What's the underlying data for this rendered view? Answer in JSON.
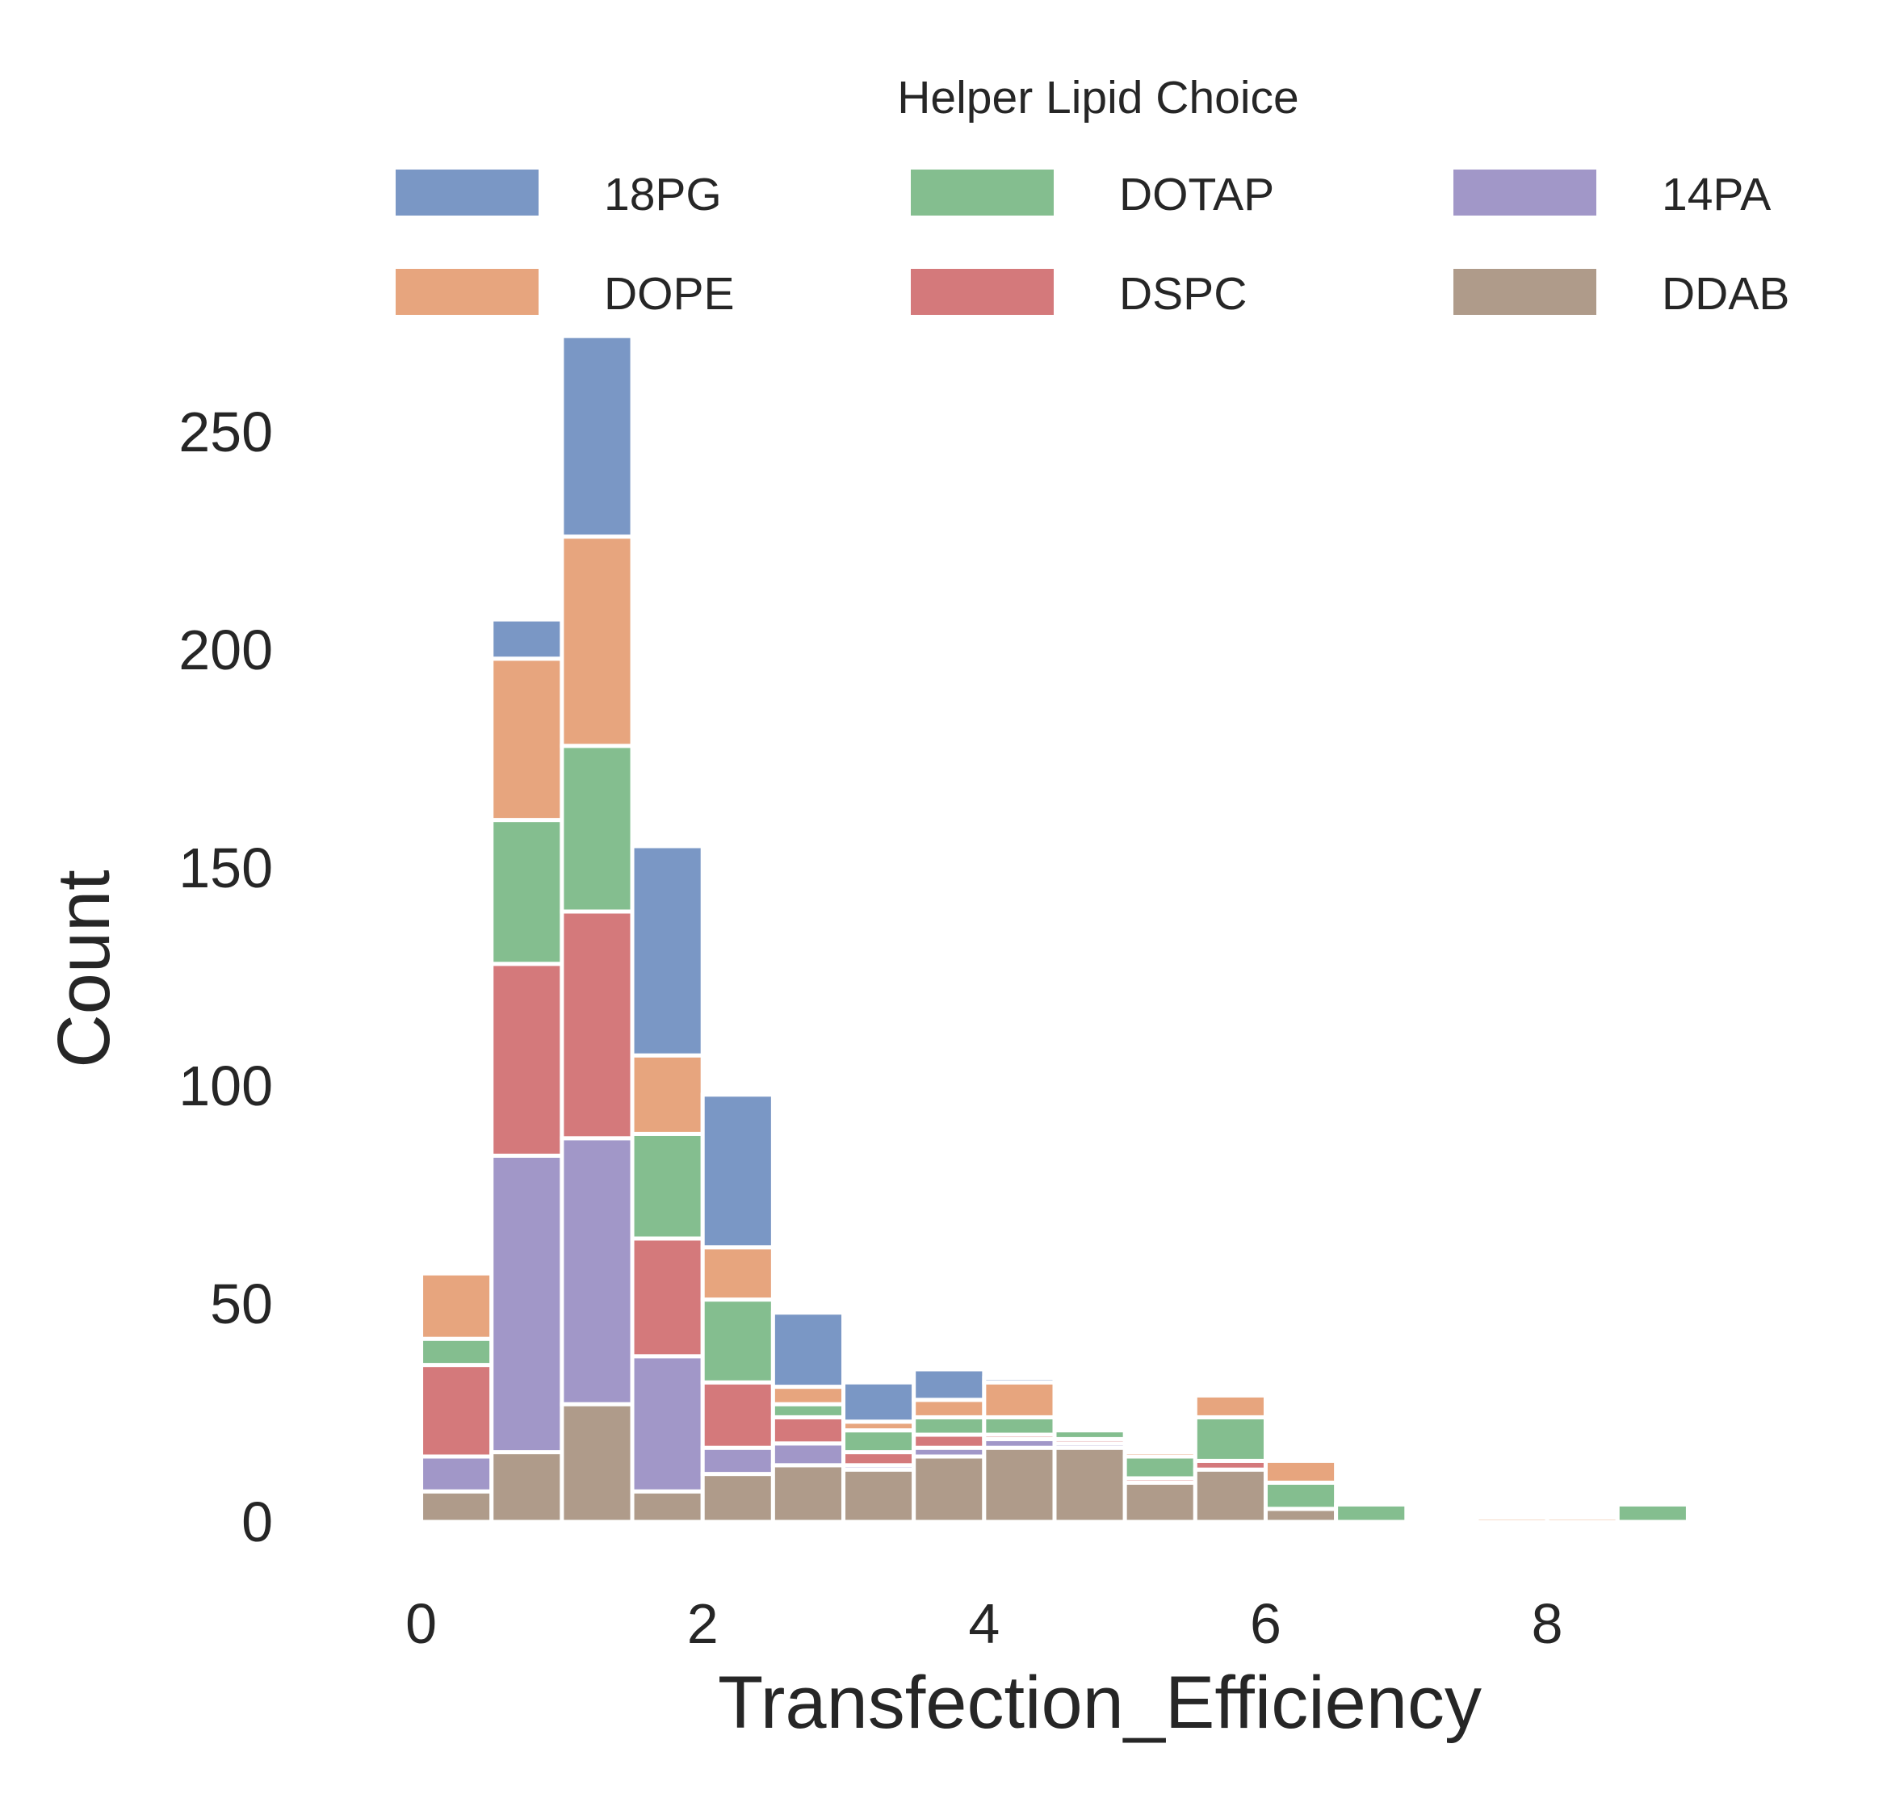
{
  "chart_data": {
    "type": "bar",
    "stacked": true,
    "xlabel": "Transfection_Efficiency",
    "ylabel": "Count",
    "xlim": [
      -0.25,
      9.25
    ],
    "ylim": [
      0,
      275
    ],
    "xticks": [
      0,
      2,
      4,
      6,
      8
    ],
    "yticks": [
      0,
      50,
      100,
      150,
      200,
      250
    ],
    "grid": false,
    "bin_width": 0.5,
    "bin_edges": [
      0,
      0.5,
      1,
      1.5,
      2,
      2.5,
      3,
      3.5,
      4,
      4.5,
      5,
      5.5,
      6,
      6.5,
      7,
      7.5,
      8,
      8.5,
      9
    ],
    "legend": {
      "title": "Helper Lipid Choice",
      "position": "top",
      "columns": 3
    },
    "series": [
      {
        "name": "DDAB",
        "color": "#af9b8a",
        "values": [
          7,
          16,
          27,
          7,
          11,
          13,
          12,
          15,
          17,
          17,
          9,
          12,
          3,
          0,
          0,
          0,
          0,
          0
        ]
      },
      {
        "name": "14PA",
        "color": "#a197c8",
        "values": [
          8,
          68,
          61,
          31,
          6,
          5,
          1,
          2,
          2,
          1,
          0,
          0,
          0,
          0,
          0,
          0,
          0,
          0
        ]
      },
      {
        "name": "DSPC",
        "color": "#d4797b",
        "values": [
          21,
          44,
          52,
          27,
          15,
          6,
          3,
          3,
          1,
          1,
          1,
          2,
          0,
          0,
          0,
          0,
          0,
          0
        ]
      },
      {
        "name": "DOTAP",
        "color": "#84be8f",
        "values": [
          6,
          33,
          38,
          24,
          19,
          3,
          5,
          4,
          4,
          2,
          5,
          10,
          6,
          4,
          0,
          0,
          0,
          4
        ]
      },
      {
        "name": "DOPE",
        "color": "#e7a57e",
        "values": [
          15,
          37,
          48,
          18,
          12,
          4,
          2,
          4,
          8,
          0,
          1,
          5,
          5,
          0,
          0,
          1,
          1,
          0
        ]
      },
      {
        "name": "18PG",
        "color": "#7a97c5",
        "values": [
          0,
          9,
          46,
          48,
          35,
          17,
          9,
          7,
          1,
          0,
          0,
          0,
          0,
          0,
          0,
          0,
          0,
          0
        ]
      }
    ],
    "legend_order": [
      "18PG",
      "DOPE",
      "DOTAP",
      "DSPC",
      "14PA",
      "DDAB"
    ]
  }
}
